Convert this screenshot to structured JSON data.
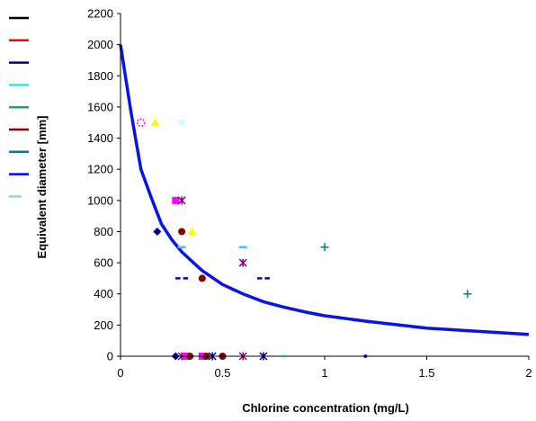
{
  "chart_data": {
    "type": "scatter",
    "xlabel": "Chlorine concentration (mg/L)",
    "ylabel": "Equivalent  diameter [mm]",
    "xlim": [
      0,
      2
    ],
    "ylim": [
      0,
      2200
    ],
    "x_ticks": [
      "0",
      "0.5",
      "1",
      "1.5",
      "2"
    ],
    "y_ticks": [
      "0",
      "200",
      "400",
      "600",
      "800",
      "1000",
      "1200",
      "1400",
      "1600",
      "1800",
      "2000",
      "2200"
    ],
    "grid": false,
    "legend_position": "left",
    "legend_entries": [
      {
        "color": "#000000"
      },
      {
        "color": "#ff0000"
      },
      {
        "color": "#000080"
      },
      {
        "color": "#00ffff"
      },
      {
        "color": "#339966"
      },
      {
        "color": "#800000"
      },
      {
        "color": "#008080"
      },
      {
        "color": "#0000ff"
      },
      {
        "color": "#99ccff"
      }
    ],
    "curve": {
      "color": "#0a14e6",
      "x": [
        0,
        0.05,
        0.1,
        0.15,
        0.2,
        0.25,
        0.3,
        0.35,
        0.4,
        0.5,
        0.6,
        0.7,
        0.8,
        0.9,
        1.0,
        1.2,
        1.5,
        2.0
      ],
      "y": [
        2000,
        1580,
        1200,
        1020,
        850,
        750,
        670,
        610,
        550,
        460,
        400,
        350,
        315,
        285,
        260,
        225,
        180,
        140
      ]
    },
    "points": [
      {
        "x": 0.1,
        "y": 1500,
        "marker": "circle-open",
        "color": "#ff00ff"
      },
      {
        "x": 0.17,
        "y": 1500,
        "marker": "triangle",
        "color": "#ffff00"
      },
      {
        "x": 0.3,
        "y": 1500,
        "marker": "diamond",
        "color": "#ccffff"
      },
      {
        "x": 0.27,
        "y": 1000,
        "marker": "square",
        "color": "#ff00ff"
      },
      {
        "x": 0.3,
        "y": 1000,
        "marker": "star",
        "color": "#800080"
      },
      {
        "x": 0.18,
        "y": 800,
        "marker": "diamond",
        "color": "#000080"
      },
      {
        "x": 0.3,
        "y": 800,
        "marker": "circle",
        "color": "#800000"
      },
      {
        "x": 0.35,
        "y": 800,
        "marker": "triangle",
        "color": "#ffff00"
      },
      {
        "x": 0.3,
        "y": 700,
        "marker": "dash",
        "color": "#33ccff"
      },
      {
        "x": 0.6,
        "y": 700,
        "marker": "dash",
        "color": "#33ccff"
      },
      {
        "x": 1.0,
        "y": 700,
        "marker": "plus",
        "color": "#008080"
      },
      {
        "x": 0.6,
        "y": 600,
        "marker": "star",
        "color": "#800080"
      },
      {
        "x": 0.3,
        "y": 500,
        "marker": "double-dash",
        "color": "#0000cc"
      },
      {
        "x": 0.4,
        "y": 500,
        "marker": "circle",
        "color": "#800000"
      },
      {
        "x": 0.7,
        "y": 500,
        "marker": "double-dash",
        "color": "#0000cc"
      },
      {
        "x": 1.7,
        "y": 400,
        "marker": "plus",
        "color": "#008080"
      },
      {
        "x": 0.27,
        "y": 0,
        "marker": "diamond",
        "color": "#000080"
      },
      {
        "x": 0.3,
        "y": 0,
        "marker": "star",
        "color": "#800080"
      },
      {
        "x": 0.32,
        "y": 0,
        "marker": "square",
        "color": "#ff00ff"
      },
      {
        "x": 0.34,
        "y": 0,
        "marker": "circle",
        "color": "#800000"
      },
      {
        "x": 0.4,
        "y": 0,
        "marker": "square",
        "color": "#ff00ff"
      },
      {
        "x": 0.42,
        "y": 0,
        "marker": "circle",
        "color": "#800000"
      },
      {
        "x": 0.45,
        "y": 0,
        "marker": "star",
        "color": "#000080"
      },
      {
        "x": 0.5,
        "y": 0,
        "marker": "circle",
        "color": "#800000"
      },
      {
        "x": 0.6,
        "y": 0,
        "marker": "star",
        "color": "#800080"
      },
      {
        "x": 0.7,
        "y": 0,
        "marker": "star",
        "color": "#000080"
      },
      {
        "x": 0.8,
        "y": 0,
        "marker": "diamond",
        "color": "#ccffff"
      },
      {
        "x": 1.2,
        "y": 0,
        "marker": "dot",
        "color": "#0000ff"
      }
    ]
  }
}
